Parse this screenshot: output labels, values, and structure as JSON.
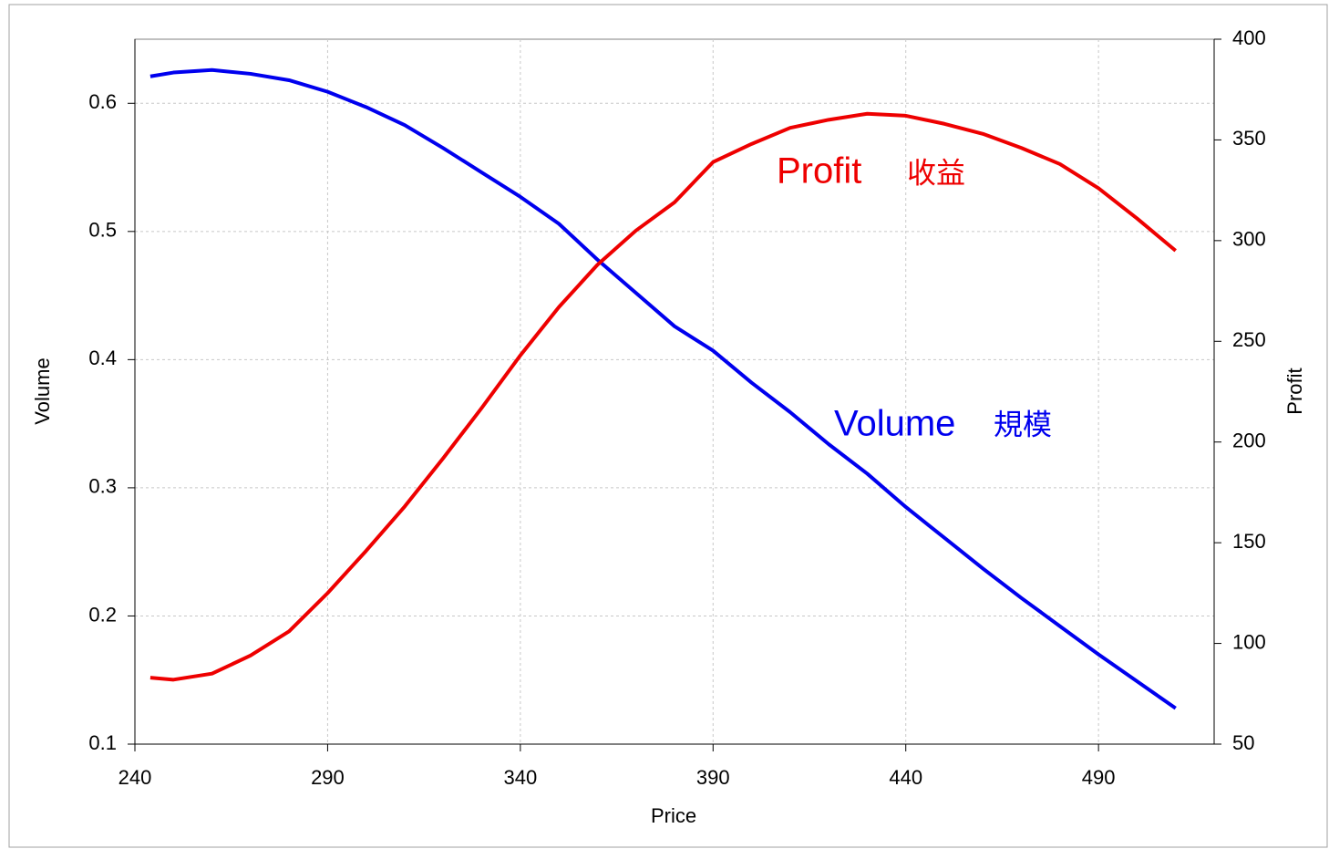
{
  "chart_data": {
    "type": "line",
    "x_label": "Price",
    "y_label": "Volume",
    "y2_label": "Profit",
    "x": [
      244,
      250,
      260,
      270,
      280,
      290,
      300,
      310,
      320,
      330,
      340,
      350,
      360,
      370,
      380,
      390,
      400,
      410,
      420,
      430,
      440,
      450,
      460,
      470,
      480,
      490,
      500,
      510
    ],
    "series": [
      {
        "name": "Volume",
        "color": "#0000ee",
        "axis": "y",
        "values": [
          0.621,
          0.624,
          0.626,
          0.623,
          0.618,
          0.609,
          0.597,
          0.583,
          0.565,
          0.546,
          0.527,
          0.506,
          0.478,
          0.452,
          0.426,
          0.407,
          0.382,
          0.359,
          0.334,
          0.311,
          0.285,
          0.261,
          0.237,
          0.214,
          0.192,
          0.17,
          0.149,
          0.128
        ]
      },
      {
        "name": "Profit",
        "color": "#ee0000",
        "axis": "y2",
        "values": [
          83,
          82,
          85,
          94,
          106,
          125,
          146,
          168,
          192,
          217,
          243,
          267,
          288,
          305,
          319,
          339,
          348,
          356,
          360,
          363,
          362,
          358,
          353,
          346,
          338,
          326,
          311,
          295
        ]
      }
    ],
    "annotations": [
      {
        "text": "Profit",
        "color": "#ee0000"
      },
      {
        "text": "收益",
        "color": "#ee0000"
      },
      {
        "text": "Volume",
        "color": "#0000ee"
      },
      {
        "text": "規模",
        "color": "#0000ee"
      }
    ],
    "xlim": [
      240,
      520
    ],
    "xticks": [
      240,
      290,
      340,
      390,
      440,
      490
    ],
    "ylim": [
      0.1,
      0.65
    ],
    "yticks": [
      0.1,
      0.2,
      0.3,
      0.4,
      0.5,
      0.6
    ],
    "y2lim": [
      50,
      400
    ],
    "y2ticks": [
      50,
      100,
      150,
      200,
      250,
      300,
      350,
      400
    ],
    "grid": true
  }
}
